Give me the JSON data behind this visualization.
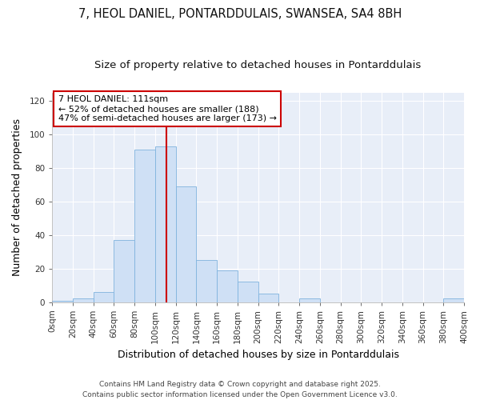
{
  "title": "7, HEOL DANIEL, PONTARDDULAIS, SWANSEA, SA4 8BH",
  "subtitle": "Size of property relative to detached houses in Pontarddulais",
  "xlabel": "Distribution of detached houses by size in Pontarddulais",
  "ylabel": "Number of detached properties",
  "bin_edges": [
    0,
    20,
    40,
    60,
    80,
    100,
    120,
    140,
    160,
    180,
    200,
    220,
    240,
    260,
    280,
    300,
    320,
    340,
    360,
    380,
    400
  ],
  "bar_heights": [
    1,
    2,
    6,
    37,
    91,
    93,
    69,
    25,
    19,
    12,
    5,
    0,
    2,
    0,
    0,
    0,
    0,
    0,
    0,
    2
  ],
  "bar_color": "#cfe0f5",
  "bar_edge_color": "#7fb3de",
  "vline_x": 111,
  "vline_color": "#cc0000",
  "annotation_title": "7 HEOL DANIEL: 111sqm",
  "annotation_line1": "← 52% of detached houses are smaller (188)",
  "annotation_line2": "47% of semi-detached houses are larger (173) →",
  "annotation_box_color": "#ffffff",
  "annotation_box_edge": "#cc0000",
  "ylim": [
    0,
    125
  ],
  "xlim": [
    0,
    400
  ],
  "ytick_values": [
    0,
    20,
    40,
    60,
    80,
    100,
    120
  ],
  "xtick_values": [
    0,
    20,
    40,
    60,
    80,
    100,
    120,
    140,
    160,
    180,
    200,
    220,
    240,
    260,
    280,
    300,
    320,
    340,
    360,
    380,
    400
  ],
  "xtick_labels": [
    "0sqm",
    "20sqm",
    "40sqm",
    "60sqm",
    "80sqm",
    "100sqm",
    "120sqm",
    "140sqm",
    "160sqm",
    "180sqm",
    "200sqm",
    "220sqm",
    "240sqm",
    "260sqm",
    "280sqm",
    "300sqm",
    "320sqm",
    "340sqm",
    "360sqm",
    "380sqm",
    "400sqm"
  ],
  "plot_bg_color": "#e8eef8",
  "fig_bg_color": "#ffffff",
  "grid_color": "#ffffff",
  "footer1": "Contains HM Land Registry data © Crown copyright and database right 2025.",
  "footer2": "Contains public sector information licensed under the Open Government Licence v3.0.",
  "title_fontsize": 10.5,
  "subtitle_fontsize": 9.5,
  "axis_label_fontsize": 9,
  "tick_fontsize": 7.5,
  "annotation_fontsize": 8,
  "footer_fontsize": 6.5
}
